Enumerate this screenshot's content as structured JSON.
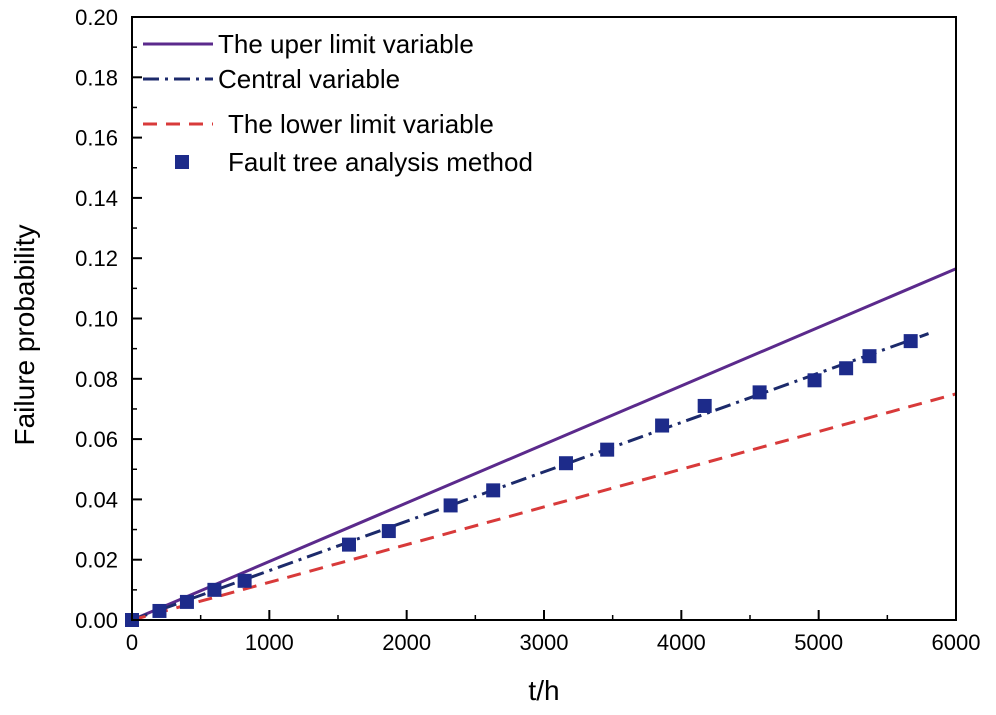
{
  "chart_data": {
    "type": "line",
    "title": "",
    "xlabel": "t/h",
    "ylabel": "Failure probability",
    "xlim": [
      0,
      6000
    ],
    "ylim": [
      0,
      0.2
    ],
    "xticks": [
      0,
      1000,
      2000,
      3000,
      4000,
      5000,
      6000
    ],
    "xtick_labels": [
      "0",
      "1000",
      "2000",
      "3000",
      "4000",
      "5000",
      "6000"
    ],
    "yticks": [
      0,
      0.02,
      0.04,
      0.06,
      0.08,
      0.1,
      0.12,
      0.14,
      0.16,
      0.18,
      0.2
    ],
    "ytick_labels": [
      "0.00",
      "0.02",
      "0.04",
      "0.06",
      "0.08",
      "0.10",
      "0.12",
      "0.14",
      "0.16",
      "0.18",
      "0.20"
    ],
    "legend_position": "top-left",
    "series": [
      {
        "name": "The uper limit variable",
        "style": "solid",
        "color": "#5b2a8c",
        "x": [
          0,
          6000
        ],
        "y": [
          0,
          0.1165
        ]
      },
      {
        "name": "Central variable",
        "style": "dashdot",
        "color": "#1c2a6b",
        "x": [
          0,
          5800
        ],
        "y": [
          0,
          0.095
        ]
      },
      {
        "name": "The lower limit variable",
        "style": "dashed",
        "color": "#d83a3a",
        "x": [
          0,
          6000
        ],
        "y": [
          0,
          0.075
        ]
      },
      {
        "name": "Fault tree analysis method",
        "style": "marker",
        "color": "#1d2b8a",
        "x": [
          0,
          200,
          400,
          600,
          820,
          1580,
          1870,
          2320,
          2630,
          3160,
          3460,
          3860,
          4170,
          4570,
          4970,
          5200,
          5370,
          5670
        ],
        "y": [
          0,
          0.003,
          0.006,
          0.01,
          0.013,
          0.025,
          0.0295,
          0.038,
          0.043,
          0.052,
          0.0565,
          0.0645,
          0.071,
          0.0755,
          0.0795,
          0.0835,
          0.0875,
          0.0925
        ]
      }
    ]
  }
}
